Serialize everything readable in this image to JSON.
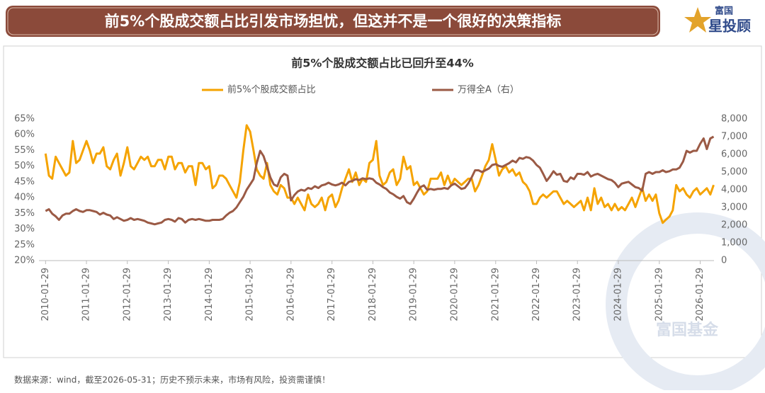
{
  "banner": {
    "headline": "前5%个股成交额占比引发市场担忧，但这并不是一个很好的决策指标",
    "logo_top": "富国",
    "logo_bottom": "星投顾"
  },
  "footer": "数据来源：wind，截至2026-05-31；历史不预示未来，市场有风险，投资需谨慎！",
  "watermark": "富国基金",
  "chart_data": {
    "type": "line",
    "title": "前5%个股成交额占比已回升至44%",
    "grid": false,
    "legend": "top",
    "xlim": [
      "2009-12-01",
      "2026-06-01"
    ],
    "xticks": [
      "2010-01-29",
      "2011-01-29",
      "2012-01-29",
      "2013-01-29",
      "2014-01-29",
      "2015-01-29",
      "2016-01-29",
      "2017-01-29",
      "2018-01-29",
      "2019-01-29",
      "2020-01-29",
      "2021-01-29",
      "2022-01-29",
      "2023-01-29",
      "2024-01-29",
      "2025-01-29",
      "2026-01-29"
    ],
    "ylim": [
      20,
      65
    ],
    "yticks": [
      {
        "value": 20,
        "label": "20%"
      },
      {
        "value": 25,
        "label": "25%"
      },
      {
        "value": 30,
        "label": "30%"
      },
      {
        "value": 35,
        "label": "35%"
      },
      {
        "value": 40,
        "label": "40%"
      },
      {
        "value": 45,
        "label": "45%"
      },
      {
        "value": 50,
        "label": "50%"
      },
      {
        "value": 55,
        "label": "55%"
      },
      {
        "value": 60,
        "label": "60%"
      },
      {
        "value": 65,
        "label": "65%"
      }
    ],
    "y2lim": [
      0,
      8000
    ],
    "y2ticks": [
      0,
      {
        "value": 1000,
        "label": "1,000"
      },
      {
        "value": 2000,
        "label": "2,000"
      },
      {
        "value": 3000,
        "label": "3,000"
      },
      {
        "value": 4000,
        "label": "4,000"
      },
      {
        "value": 5000,
        "label": "5,000"
      },
      {
        "value": 6000,
        "label": "6,000"
      },
      {
        "value": 7000,
        "label": "7,000"
      },
      {
        "value": 8000,
        "label": "8,000"
      }
    ],
    "x": [
      "2010-01-29",
      "2010-02-28",
      "2010-03-29",
      "2010-04-29",
      "2010-05-29",
      "2010-06-29",
      "2010-07-29",
      "2010-08-29",
      "2010-09-29",
      "2010-10-29",
      "2010-11-29",
      "2010-12-29",
      "2011-01-29",
      "2011-02-28",
      "2011-03-29",
      "2011-04-29",
      "2011-05-29",
      "2011-06-29",
      "2011-07-29",
      "2011-08-29",
      "2011-09-29",
      "2011-10-29",
      "2011-11-29",
      "2011-12-29",
      "2012-01-29",
      "2012-02-28",
      "2012-03-29",
      "2012-04-29",
      "2012-05-29",
      "2012-06-29",
      "2012-07-29",
      "2012-08-29",
      "2012-09-29",
      "2012-10-29",
      "2012-11-29",
      "2012-12-29",
      "2013-01-29",
      "2013-02-28",
      "2013-03-29",
      "2013-04-29",
      "2013-05-29",
      "2013-06-29",
      "2013-07-29",
      "2013-08-29",
      "2013-09-29",
      "2013-10-29",
      "2013-11-29",
      "2013-12-29",
      "2014-01-29",
      "2014-02-28",
      "2014-03-29",
      "2014-04-29",
      "2014-05-29",
      "2014-06-29",
      "2014-07-29",
      "2014-08-29",
      "2014-09-29",
      "2014-10-29",
      "2014-11-29",
      "2014-12-29",
      "2015-01-29",
      "2015-02-28",
      "2015-03-29",
      "2015-04-29",
      "2015-05-29",
      "2015-06-29",
      "2015-07-29",
      "2015-08-29",
      "2015-09-29",
      "2015-10-29",
      "2015-11-29",
      "2015-12-29",
      "2016-01-29",
      "2016-02-28",
      "2016-03-29",
      "2016-04-29",
      "2016-05-29",
      "2016-06-29",
      "2016-07-29",
      "2016-08-29",
      "2016-09-29",
      "2016-10-29",
      "2016-11-29",
      "2016-12-29",
      "2017-01-29",
      "2017-02-28",
      "2017-03-29",
      "2017-04-29",
      "2017-05-29",
      "2017-06-29",
      "2017-07-29",
      "2017-08-29",
      "2017-09-29",
      "2017-10-29",
      "2017-11-29",
      "2017-12-29",
      "2018-01-29",
      "2018-02-28",
      "2018-03-29",
      "2018-04-29",
      "2018-05-29",
      "2018-06-29",
      "2018-07-29",
      "2018-08-29",
      "2018-09-29",
      "2018-10-29",
      "2018-11-29",
      "2018-12-29",
      "2019-01-29",
      "2019-02-28",
      "2019-03-29",
      "2019-04-29",
      "2019-05-29",
      "2019-06-29",
      "2019-07-29",
      "2019-08-29",
      "2019-09-29",
      "2019-10-29",
      "2019-11-29",
      "2019-12-29",
      "2020-01-29",
      "2020-02-28",
      "2020-03-29",
      "2020-04-29",
      "2020-05-29",
      "2020-06-29",
      "2020-07-29",
      "2020-08-29",
      "2020-09-29",
      "2020-10-29",
      "2020-11-29",
      "2020-12-29",
      "2021-01-29",
      "2021-02-28",
      "2021-03-29",
      "2021-04-29",
      "2021-05-29",
      "2021-06-29",
      "2021-07-29",
      "2021-08-29",
      "2021-09-29",
      "2021-10-29",
      "2021-11-29",
      "2021-12-29",
      "2022-01-29",
      "2022-02-28",
      "2022-03-29",
      "2022-04-29",
      "2022-05-29",
      "2022-06-29",
      "2022-07-29",
      "2022-08-29",
      "2022-09-29",
      "2022-10-29",
      "2022-11-29",
      "2022-12-29",
      "2023-01-29",
      "2023-02-28",
      "2023-03-29",
      "2023-04-29",
      "2023-05-29",
      "2023-06-29",
      "2023-07-29",
      "2023-08-29",
      "2023-09-29",
      "2023-10-29",
      "2023-11-29",
      "2023-12-29",
      "2024-01-29",
      "2024-02-28",
      "2024-03-29",
      "2024-04-29",
      "2024-05-29",
      "2024-06-29",
      "2024-07-29",
      "2024-08-29",
      "2024-09-29",
      "2024-10-29",
      "2024-11-29",
      "2024-12-29",
      "2025-01-29",
      "2025-02-28",
      "2025-03-29",
      "2025-04-29",
      "2025-05-29",
      "2025-06-29",
      "2025-07-29",
      "2025-08-29",
      "2025-09-29",
      "2025-10-29",
      "2025-11-29",
      "2025-12-29",
      "2026-01-29",
      "2026-02-28",
      "2026-03-29",
      "2026-04-29",
      "2026-05-29"
    ],
    "series": [
      {
        "name": "前5%个股成交额占比",
        "color": "#f5a300",
        "axis": "y",
        "values": [
          54,
          47,
          46,
          53,
          51,
          49,
          47,
          48,
          58,
          51,
          52,
          55,
          58,
          55,
          51,
          54,
          54,
          56,
          50,
          49,
          52,
          54,
          47,
          51,
          56,
          50,
          49,
          51,
          53,
          52,
          53,
          50,
          50,
          52,
          52,
          49,
          53,
          53,
          49,
          51,
          51,
          48,
          50,
          50,
          44,
          51,
          51,
          49,
          50,
          43,
          44,
          47,
          47,
          46,
          44,
          42,
          40,
          45,
          55,
          63,
          61,
          55,
          49,
          47,
          46,
          51,
          44,
          42,
          41,
          44,
          43,
          40,
          40,
          38,
          40,
          38,
          36,
          41,
          38,
          37,
          38,
          40,
          36,
          40,
          41,
          37,
          39,
          43,
          46,
          49,
          45,
          48,
          44,
          46,
          45,
          51,
          52,
          58,
          47,
          44,
          45,
          48,
          49,
          44,
          46,
          53,
          49,
          50,
          44,
          45,
          43,
          41,
          42,
          46,
          46,
          46,
          48,
          44,
          47,
          44,
          46,
          45,
          44,
          45,
          46,
          46,
          42,
          44,
          47,
          50,
          52,
          57,
          52,
          47,
          49,
          50,
          48,
          49,
          47,
          48,
          45,
          44,
          42,
          38,
          38,
          40,
          41,
          40,
          41,
          42,
          42,
          40,
          38,
          39,
          38,
          37,
          38,
          39,
          36,
          40,
          36,
          43,
          38,
          40,
          37,
          38,
          36,
          38,
          36,
          37,
          36,
          38,
          40,
          37,
          40,
          43,
          39,
          41,
          39,
          41,
          35,
          32,
          33,
          34,
          36,
          44,
          42,
          43,
          41,
          40,
          42,
          43,
          41,
          42,
          43,
          41,
          44
        ]
      },
      {
        "name": "万得全A（右）",
        "color": "#9b5a45",
        "axis": "y2",
        "values": [
          2800,
          2900,
          2650,
          2500,
          2300,
          2550,
          2650,
          2650,
          2800,
          2900,
          2800,
          2750,
          2850,
          2850,
          2800,
          2750,
          2600,
          2700,
          2600,
          2550,
          2350,
          2450,
          2350,
          2250,
          2300,
          2400,
          2300,
          2350,
          2300,
          2250,
          2150,
          2100,
          2050,
          2100,
          2150,
          2300,
          2350,
          2300,
          2200,
          2400,
          2350,
          2150,
          2300,
          2350,
          2300,
          2350,
          2300,
          2250,
          2250,
          2300,
          2300,
          2300,
          2350,
          2550,
          2700,
          2800,
          3000,
          3300,
          3600,
          4000,
          4300,
          4600,
          5500,
          6200,
          5900,
          5300,
          4700,
          4300,
          4200,
          4700,
          4900,
          4800,
          3400,
          3700,
          3900,
          4000,
          3950,
          4100,
          4050,
          4200,
          4100,
          4250,
          4300,
          4400,
          4300,
          4250,
          4300,
          4400,
          4250,
          4450,
          4500,
          4600,
          4550,
          4650,
          4600,
          4650,
          4600,
          4400,
          4300,
          4150,
          4050,
          3850,
          3750,
          3600,
          3500,
          3650,
          3300,
          3200,
          3500,
          3850,
          4150,
          4250,
          4000,
          4050,
          4000,
          4050,
          4050,
          4100,
          4050,
          4250,
          4350,
          4200,
          4050,
          4100,
          4350,
          4700,
          5100,
          5100,
          5000,
          5100,
          5200,
          5400,
          5450,
          5350,
          5300,
          5400,
          5500,
          5650,
          5550,
          5800,
          5750,
          5850,
          5800,
          5650,
          5400,
          5250,
          4900,
          4500,
          4750,
          5050,
          4850,
          4900,
          4500,
          4450,
          4700,
          4600,
          4900,
          4900,
          4850,
          5000,
          4750,
          4850,
          4900,
          4800,
          4700,
          4600,
          4550,
          4400,
          4150,
          4350,
          4400,
          4450,
          4300,
          4150,
          4100,
          3950,
          4900,
          5000,
          4900,
          5000,
          5000,
          5100,
          5000,
          5050,
          5150,
          5150,
          5250,
          5600,
          6200,
          6100,
          6200,
          6200,
          6600,
          6900,
          6300,
          6900,
          7000
        ]
      }
    ]
  }
}
